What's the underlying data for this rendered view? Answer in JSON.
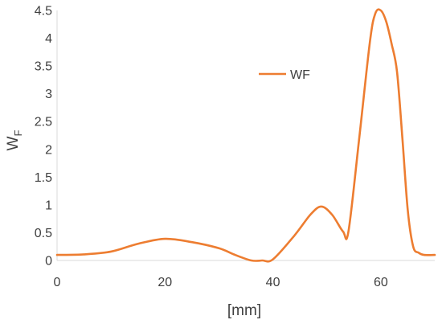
{
  "chart_data": {
    "type": "line",
    "title": "",
    "xlabel": "[mm]",
    "ylabel": "W",
    "ylabel_subscript": "F",
    "xlim": [
      0,
      70
    ],
    "ylim": [
      0,
      4.5
    ],
    "xticks": [
      0,
      20,
      40,
      60
    ],
    "yticks": [
      0,
      0.5,
      1,
      1.5,
      2,
      2.5,
      3,
      3.5,
      4,
      4.5
    ],
    "xtick_labels": [
      "0",
      "20",
      "40",
      "60"
    ],
    "ytick_labels": [
      "0",
      "0.5",
      "1",
      "1.5",
      "2",
      "2.5",
      "3",
      "3.5",
      "4",
      "4.5"
    ],
    "grid": false,
    "legend_position": "top-center",
    "series": [
      {
        "name": "WF",
        "color": "#ED7D31",
        "x": [
          0,
          5,
          10,
          15,
          20,
          25,
          30,
          33,
          36,
          38,
          40,
          44,
          47,
          49,
          51,
          53,
          54,
          56,
          58,
          59,
          60,
          61,
          62,
          63,
          64,
          65,
          66,
          67,
          68,
          70
        ],
        "y": [
          0.1,
          0.11,
          0.16,
          0.3,
          0.39,
          0.33,
          0.22,
          0.1,
          0.0,
          0.0,
          0.02,
          0.45,
          0.83,
          0.97,
          0.82,
          0.52,
          0.52,
          2.2,
          3.95,
          4.45,
          4.5,
          4.3,
          3.9,
          3.4,
          2.2,
          0.9,
          0.25,
          0.14,
          0.1,
          0.1
        ]
      }
    ]
  }
}
